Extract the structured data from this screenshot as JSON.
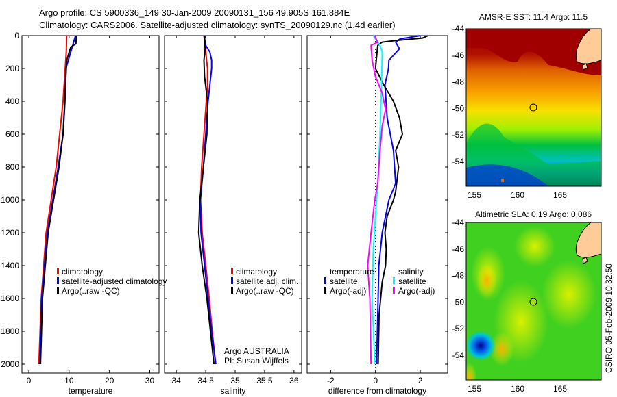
{
  "title": {
    "line1": "Argo profile: CS 5900336_149 30-Jan-2009 20090131_156 49.905S 161.884E",
    "line2": "Climatology: CARS2006. Satellite-adjusted climatology: synTS_20090129.nc (1.4d earlier)"
  },
  "footer_stamp": "CSIRO 05-Feb-2009 10:32:50",
  "colors": {
    "climatology": "#ff0000",
    "satellite": "#0000ff",
    "argo": "#000000",
    "sal_satellite": "#00ffff",
    "sal_argo": "#ff00ff",
    "land": "#ffcc99"
  },
  "chart_data": [
    {
      "type": "line",
      "xlabel": "temperature",
      "ylabel": "",
      "xlim": [
        -1.7,
        32.3
      ],
      "ylim": [
        2050,
        0
      ],
      "xticks": [
        "0",
        "10",
        "20",
        "30"
      ],
      "xtick_values": [
        0,
        10,
        20,
        30
      ],
      "yticks": [
        "0",
        "200",
        "400",
        "600",
        "800",
        "1000",
        "1200",
        "1400",
        "1600",
        "1800",
        "2000"
      ],
      "ytick_values": [
        0,
        200,
        400,
        600,
        800,
        1000,
        1200,
        1400,
        1600,
        1800,
        2000
      ],
      "legend": {
        "placement": "center-right",
        "entries": [
          "climatology",
          "satellite-adjusted climatology",
          "Argo(..raw -QC)"
        ]
      },
      "series": [
        {
          "name": "climatology",
          "color": "#ff0000",
          "depth": [
            0,
            100,
            400,
            800,
            1200,
            1600,
            2000
          ],
          "values": [
            9.4,
            9.3,
            8.5,
            6.8,
            4.3,
            3.1,
            2.5
          ]
        },
        {
          "name": "satellite-adjusted climatology",
          "color": "#0000ff",
          "depth": [
            0,
            100,
            200,
            400,
            600,
            800,
            1200,
            1600,
            2000
          ],
          "values": [
            11.6,
            10.4,
            9.2,
            9.0,
            8.5,
            7.3,
            4.6,
            3.2,
            2.7
          ]
        },
        {
          "name": "Argo(..raw -QC)",
          "color": "#000000",
          "depth": [
            0,
            50,
            70,
            150,
            400,
            600,
            800,
            1200,
            1600,
            2000
          ],
          "values": [
            11.8,
            11.7,
            10.4,
            9.4,
            8.9,
            8.5,
            7.5,
            4.8,
            3.4,
            2.9
          ]
        }
      ]
    },
    {
      "type": "line",
      "xlabel": "salinity",
      "xlim": [
        33.8,
        36.13
      ],
      "ylim": [
        2050,
        0
      ],
      "xticks": [
        "34",
        "34.5",
        "35",
        "35.5",
        "36"
      ],
      "xtick_values": [
        34,
        34.5,
        35,
        35.5,
        36
      ],
      "legend": {
        "placement": "center-right",
        "entries": [
          "climatology",
          "satellite adj. clim.",
          "Argo(..raw -QC)"
        ]
      },
      "annotation": [
        "Argo AUSTRALIA",
        "PI: Susan Wijffels"
      ],
      "series": [
        {
          "name": "climatology",
          "color": "#ff0000",
          "depth": [
            0,
            100,
            200,
            300,
            400,
            600,
            800,
            1000,
            1200,
            1400,
            1600,
            1800,
            2000
          ],
          "values": [
            34.47,
            34.5,
            34.53,
            34.53,
            34.51,
            34.47,
            34.43,
            34.41,
            34.44,
            34.5,
            34.56,
            34.61,
            34.67
          ]
        },
        {
          "name": "satellite adj. clim.",
          "color": "#0000ff",
          "depth": [
            0,
            60,
            100,
            150,
            200,
            300,
            400,
            600,
            800,
            1000,
            1200,
            1400,
            1600,
            1800,
            2000
          ],
          "values": [
            34.47,
            34.5,
            34.57,
            34.6,
            34.6,
            34.57,
            34.54,
            34.5,
            34.46,
            34.41,
            34.42,
            34.48,
            34.54,
            34.6,
            34.67
          ]
        },
        {
          "name": "Argo(..raw -QC)",
          "color": "#000000",
          "depth": [
            0,
            80,
            150,
            250,
            400,
            600,
            800,
            1000,
            1200,
            1400,
            1600,
            1800,
            2000
          ],
          "values": [
            34.48,
            34.49,
            34.47,
            34.48,
            34.53,
            34.52,
            34.46,
            34.4,
            34.38,
            34.44,
            34.52,
            34.58,
            34.64
          ]
        }
      ]
    },
    {
      "type": "line",
      "xlabel": "difference from climatology",
      "xlim": [
        -3.05,
        3.22
      ],
      "ylim": [
        2050,
        0
      ],
      "xticks": [
        "-2",
        "0",
        "2"
      ],
      "xtick_values": [
        -2,
        0,
        2
      ],
      "zero_line": "dotted",
      "legend": {
        "placement": "center",
        "groups": [
          {
            "title": "temperature",
            "entries": [
              "satellite",
              "Argo(-adj)"
            ]
          },
          {
            "title": "salinity",
            "entries": [
              "satellite",
              "Argo(-adj)"
            ]
          }
        ]
      },
      "series": [
        {
          "name": "temperature satellite",
          "color": "#0000ff",
          "depth": [
            0,
            20,
            40,
            80,
            150,
            200,
            300,
            500,
            700,
            900,
            1000,
            1200,
            1400,
            1700,
            2000
          ],
          "values": [
            2.0,
            1.1,
            0.9,
            1.07,
            0.6,
            0.58,
            0.42,
            0.52,
            0.8,
            0.9,
            0.6,
            0.3,
            0.15,
            0.1,
            0.05
          ]
        },
        {
          "name": "temperature Argo(-adj)",
          "color": "#000000",
          "depth": [
            0,
            15,
            30,
            40,
            60,
            100,
            200,
            300,
            400,
            500,
            600,
            700,
            800,
            950,
            1000,
            1100,
            1200,
            1300,
            1400,
            1500,
            1700,
            2000
          ],
          "values": [
            2.35,
            2.1,
            0.9,
            0.3,
            0.1,
            0.07,
            0,
            0.37,
            0.8,
            1.07,
            1.2,
            0.9,
            1.03,
            0.9,
            0.8,
            0.52,
            0.42,
            0.48,
            0.45,
            0.3,
            0.16,
            0.12
          ]
        },
        {
          "name": "salinity satellite",
          "color": "#00ffff",
          "depth": [
            0,
            60,
            100,
            300,
            600,
            900,
            1100,
            1300,
            1600,
            2000
          ],
          "values": [
            -0.1,
            0.2,
            0.3,
            0.27,
            0.2,
            0.1,
            0,
            -0.1,
            -0.15,
            -0.03
          ]
        },
        {
          "name": "salinity Argo(-adj)",
          "color": "#ff00ff",
          "depth": [
            0,
            40,
            60,
            150,
            250,
            350,
            450,
            550,
            700,
            900,
            1000,
            1200,
            1400,
            1600,
            2000
          ],
          "values": [
            -0.05,
            0.1,
            -0.2,
            -0.15,
            0,
            0.3,
            0.45,
            0.3,
            0.2,
            0.1,
            -0.03,
            -0.2,
            -0.35,
            -0.25,
            -0.2
          ]
        }
      ]
    },
    {
      "type": "heatmap",
      "title": "AMSR-E SST: 11.4 Argo: 11.5",
      "xticks": [
        "155",
        "160",
        "165"
      ],
      "yticks": [
        "-44",
        "-46",
        "-48",
        "-50",
        "-52",
        "-54"
      ],
      "xlim": [
        154,
        169.8
      ],
      "ylim": [
        -55.85,
        -44
      ],
      "marker": {
        "lon": 161.884,
        "lat": -49.905
      }
    },
    {
      "type": "heatmap",
      "title": "Altimetric SLA: 0.19 Argo: 0.086",
      "xticks": [
        "155",
        "160",
        "165"
      ],
      "yticks": [
        "-44",
        "-46",
        "-48",
        "-50",
        "-52",
        "-54"
      ],
      "xlim": [
        154,
        169.8
      ],
      "ylim": [
        -55.85,
        -44
      ],
      "marker": {
        "lon": 161.884,
        "lat": -49.905
      }
    }
  ],
  "legends": {
    "temp": [
      "climatology",
      "satellite-adjusted climatology",
      "Argo(..raw -QC)"
    ],
    "sal": [
      "climatology",
      "satellite adj. clim.",
      "Argo(..raw -QC)"
    ],
    "diff": {
      "temp_title": "temperature",
      "sal_title": "salinity",
      "temp_entries": [
        "satellite",
        "Argo(-adj)"
      ],
      "sal_entries": [
        "satellite",
        "Argo(-adj)"
      ]
    }
  }
}
